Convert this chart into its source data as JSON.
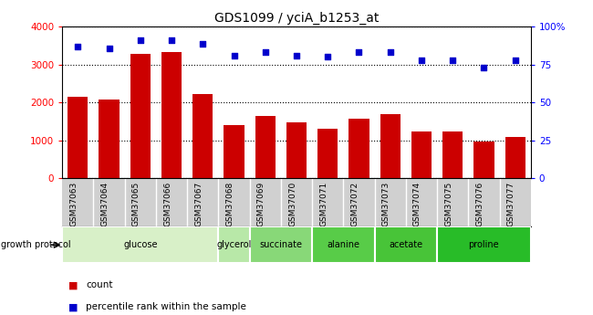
{
  "title": "GDS1099 / yciA_b1253_at",
  "samples": [
    "GSM37063",
    "GSM37064",
    "GSM37065",
    "GSM37066",
    "GSM37067",
    "GSM37068",
    "GSM37069",
    "GSM37070",
    "GSM37071",
    "GSM37072",
    "GSM37073",
    "GSM37074",
    "GSM37075",
    "GSM37076",
    "GSM37077"
  ],
  "counts": [
    2150,
    2080,
    3280,
    3330,
    2230,
    1400,
    1630,
    1460,
    1310,
    1570,
    1680,
    1240,
    1220,
    960,
    1080
  ],
  "percentile": [
    87,
    86,
    91,
    91,
    89,
    81,
    83,
    81,
    80,
    83,
    83,
    78,
    78,
    73,
    78
  ],
  "groups": [
    {
      "label": "glucose",
      "start": 0,
      "end": 4,
      "color": "#d8f0c8"
    },
    {
      "label": "glycerol",
      "start": 5,
      "end": 5,
      "color": "#b8e8a8"
    },
    {
      "label": "succinate",
      "start": 6,
      "end": 7,
      "color": "#88d878"
    },
    {
      "label": "alanine",
      "start": 8,
      "end": 9,
      "color": "#58cc48"
    },
    {
      "label": "acetate",
      "start": 10,
      "end": 11,
      "color": "#48c438"
    },
    {
      "label": "proline",
      "start": 12,
      "end": 14,
      "color": "#28bc28"
    }
  ],
  "bar_color": "#cc0000",
  "dot_color": "#0000cc",
  "left_ylim": [
    0,
    4000
  ],
  "right_ylim": [
    0,
    100
  ],
  "left_yticks": [
    0,
    1000,
    2000,
    3000,
    4000
  ],
  "right_yticks": [
    0,
    25,
    50,
    75,
    100
  ],
  "right_yticklabels": [
    "0",
    "25",
    "50",
    "75",
    "100%"
  ],
  "xtick_bg": "#d0d0d0",
  "grid_color": "#000000",
  "plot_bg": "#ffffff",
  "fig_bg": "#ffffff"
}
